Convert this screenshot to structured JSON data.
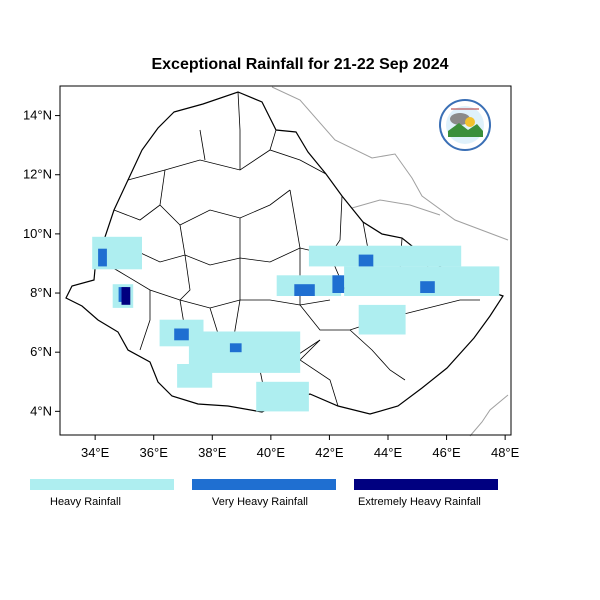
{
  "title": "Exceptional Rainfall for 21-22 Sep 2024",
  "map": {
    "region": "Ethiopia",
    "lon_range": [
      32.8,
      48.2
    ],
    "lat_range": [
      3.2,
      15.0
    ],
    "lon_ticks": [
      {
        "value": 34,
        "label": "34°E"
      },
      {
        "value": 36,
        "label": "36°E"
      },
      {
        "value": 38,
        "label": "38°E"
      },
      {
        "value": 40,
        "label": "40°E"
      },
      {
        "value": 42,
        "label": "42°E"
      },
      {
        "value": 44,
        "label": "44°E"
      },
      {
        "value": 46,
        "label": "46°E"
      },
      {
        "value": 48,
        "label": "48°E"
      }
    ],
    "lat_ticks": [
      {
        "value": 4,
        "label": "4°N"
      },
      {
        "value": 6,
        "label": "6°N"
      },
      {
        "value": 8,
        "label": "8°N"
      },
      {
        "value": 10,
        "label": "10°N"
      },
      {
        "value": 12,
        "label": "12°N"
      },
      {
        "value": 14,
        "label": "14°N"
      }
    ],
    "logo": "national-meteorology-agency-logo"
  },
  "categories": [
    {
      "key": "heavy",
      "label": "Heavy Rainfall",
      "color": "#aeeef0"
    },
    {
      "key": "very_heavy",
      "label": "Very Heavy Rainfall",
      "color": "#1f6fd1"
    },
    {
      "key": "extreme",
      "label": "Extremely Heavy Rainfall",
      "color": "#000080"
    }
  ],
  "rainfall_areas": [
    {
      "category": "heavy",
      "lon": [
        33.9,
        35.6
      ],
      "lat": [
        8.8,
        9.9
      ]
    },
    {
      "category": "heavy",
      "lon": [
        34.6,
        35.3
      ],
      "lat": [
        7.5,
        8.3
      ]
    },
    {
      "category": "heavy",
      "lon": [
        36.2,
        37.7
      ],
      "lat": [
        6.2,
        7.1
      ]
    },
    {
      "category": "heavy",
      "lon": [
        37.2,
        41.0
      ],
      "lat": [
        5.3,
        6.7
      ]
    },
    {
      "category": "heavy",
      "lon": [
        36.8,
        38.0
      ],
      "lat": [
        4.8,
        5.6
      ]
    },
    {
      "category": "heavy",
      "lon": [
        39.5,
        41.3
      ],
      "lat": [
        4.0,
        5.0
      ]
    },
    {
      "category": "heavy",
      "lon": [
        40.2,
        42.4
      ],
      "lat": [
        7.9,
        8.6
      ]
    },
    {
      "category": "heavy",
      "lon": [
        41.3,
        46.5
      ],
      "lat": [
        8.9,
        9.6
      ]
    },
    {
      "category": "heavy",
      "lon": [
        42.5,
        47.8
      ],
      "lat": [
        7.9,
        8.9
      ]
    },
    {
      "category": "heavy",
      "lon": [
        43.0,
        44.6
      ],
      "lat": [
        6.6,
        7.6
      ]
    },
    {
      "category": "very_heavy",
      "lon": [
        34.1,
        34.4
      ],
      "lat": [
        8.9,
        9.5
      ]
    },
    {
      "category": "very_heavy",
      "lon": [
        34.8,
        35.1
      ],
      "lat": [
        7.7,
        8.2
      ]
    },
    {
      "category": "very_heavy",
      "lon": [
        36.7,
        37.2
      ],
      "lat": [
        6.4,
        6.8
      ]
    },
    {
      "category": "very_heavy",
      "lon": [
        38.6,
        39.0
      ],
      "lat": [
        6.0,
        6.3
      ]
    },
    {
      "category": "very_heavy",
      "lon": [
        40.8,
        41.5
      ],
      "lat": [
        7.9,
        8.3
      ]
    },
    {
      "category": "very_heavy",
      "lon": [
        42.1,
        42.5
      ],
      "lat": [
        8.0,
        8.6
      ]
    },
    {
      "category": "very_heavy",
      "lon": [
        43.0,
        43.5
      ],
      "lat": [
        8.9,
        9.3
      ]
    },
    {
      "category": "very_heavy",
      "lon": [
        45.1,
        45.6
      ],
      "lat": [
        8.0,
        8.4
      ]
    },
    {
      "category": "extreme",
      "lon": [
        34.9,
        35.2
      ],
      "lat": [
        7.6,
        8.2
      ]
    }
  ]
}
